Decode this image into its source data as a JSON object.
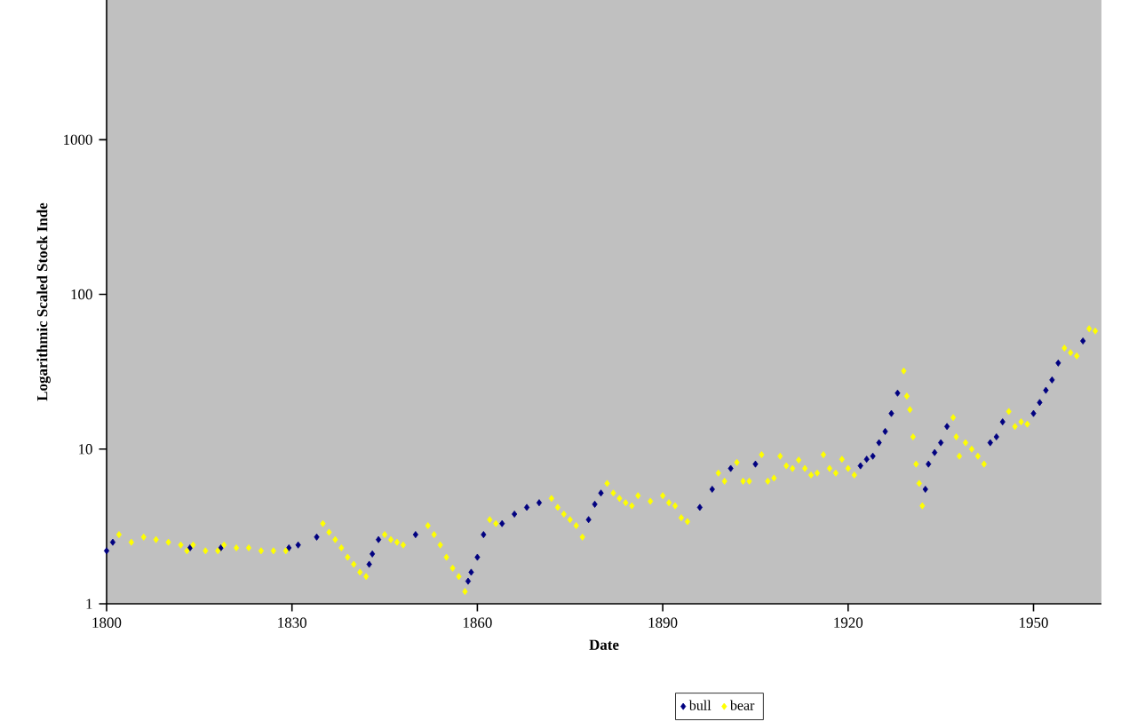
{
  "chart_data": {
    "type": "scatter",
    "xlabel": "Date",
    "ylabel": "Logarithmic Scaled Stock Inde",
    "log": "y",
    "marker": "diamond",
    "legend": "bottom",
    "xlim": [
      1800,
      1961
    ],
    "xticks": [
      1800,
      1830,
      1860,
      1890,
      1920,
      1950
    ],
    "ylim": [
      1,
      8000
    ],
    "yticks": [
      1,
      10,
      100,
      1000
    ],
    "series": [
      {
        "name": "bull",
        "color": "#000080",
        "x": [
          1800,
          1801,
          1813.5,
          1818.5,
          1829.5,
          1831,
          1834,
          1842.5,
          1843,
          1844,
          1850,
          1858.5,
          1859,
          1860,
          1861,
          1864,
          1866,
          1868,
          1870,
          1878,
          1879,
          1880,
          1896,
          1898,
          1901,
          1905,
          1922,
          1923,
          1924,
          1925,
          1926,
          1927,
          1928,
          1932.5,
          1933,
          1934,
          1935,
          1936,
          1943,
          1944,
          1945,
          1950,
          1951,
          1952,
          1953,
          1954,
          1958
        ],
        "values": [
          2.2,
          2.5,
          2.3,
          2.3,
          2.3,
          2.4,
          2.7,
          1.8,
          2.1,
          2.6,
          2.8,
          1.4,
          1.6,
          2.0,
          2.8,
          3.3,
          3.8,
          4.2,
          4.5,
          3.5,
          4.4,
          5.2,
          4.2,
          5.5,
          7.5,
          8.0,
          7.8,
          8.6,
          9.0,
          11,
          13,
          17,
          23,
          5.5,
          8,
          9.5,
          11,
          14,
          11,
          12,
          15,
          17,
          20,
          24,
          28,
          36,
          50
        ]
      },
      {
        "name": "bear",
        "color": "#ffff00",
        "x": [
          1802,
          1804,
          1806,
          1808,
          1810,
          1812,
          1813,
          1814,
          1816,
          1818,
          1819,
          1821,
          1823,
          1825,
          1827,
          1829,
          1835,
          1836,
          1837,
          1838,
          1839,
          1840,
          1841,
          1842,
          1845,
          1846,
          1847,
          1848,
          1852,
          1853,
          1854,
          1855,
          1856,
          1857,
          1858,
          1862,
          1863,
          1872,
          1873,
          1874,
          1875,
          1876,
          1877,
          1881,
          1882,
          1883,
          1884,
          1885,
          1886,
          1888,
          1890,
          1891,
          1892,
          1893,
          1894,
          1899,
          1900,
          1902,
          1903,
          1904,
          1906,
          1907,
          1908,
          1909,
          1910,
          1911,
          1912,
          1913,
          1914,
          1915,
          1916,
          1917,
          1918,
          1919,
          1920,
          1921,
          1929,
          1929.5,
          1930,
          1930.5,
          1931,
          1931.5,
          1932,
          1937,
          1937.5,
          1938,
          1939,
          1940,
          1941,
          1942,
          1946,
          1947,
          1948,
          1949,
          1955,
          1956,
          1957,
          1959,
          1960
        ],
        "values": [
          2.8,
          2.5,
          2.7,
          2.6,
          2.5,
          2.4,
          2.2,
          2.4,
          2.2,
          2.2,
          2.4,
          2.3,
          2.3,
          2.2,
          2.2,
          2.2,
          3.3,
          2.9,
          2.6,
          2.3,
          2.0,
          1.8,
          1.6,
          1.5,
          2.8,
          2.6,
          2.5,
          2.4,
          3.2,
          2.8,
          2.4,
          2.0,
          1.7,
          1.5,
          1.2,
          3.5,
          3.3,
          4.8,
          4.2,
          3.8,
          3.5,
          3.2,
          2.7,
          6.0,
          5.2,
          4.8,
          4.5,
          4.3,
          5.0,
          4.6,
          5.0,
          4.5,
          4.3,
          3.6,
          3.4,
          7.0,
          6.2,
          8.2,
          6.2,
          6.2,
          9.2,
          6.2,
          6.5,
          9.0,
          7.8,
          7.5,
          8.5,
          7.5,
          6.8,
          7.0,
          9.2,
          7.5,
          7.0,
          8.6,
          7.5,
          6.8,
          32,
          22,
          18,
          12,
          8,
          6,
          4.3,
          16,
          12,
          9,
          11,
          10,
          9,
          8,
          17.5,
          14,
          15,
          14.5,
          45,
          42,
          40,
          60,
          58
        ]
      }
    ]
  }
}
